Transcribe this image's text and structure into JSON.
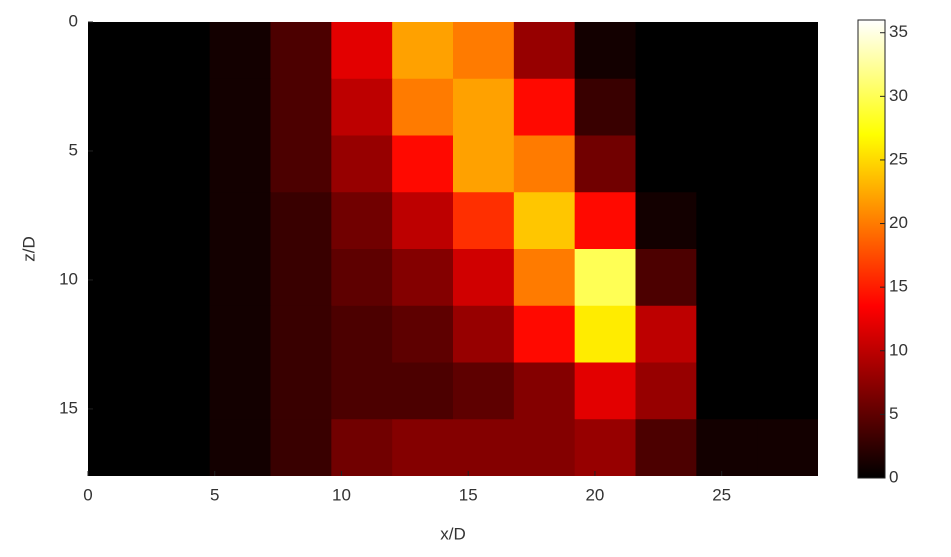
{
  "chart_data": {
    "type": "heatmap",
    "xlabel": "x/D",
    "ylabel": "z/D",
    "xbins": [
      0,
      2.4,
      4.8,
      7.2,
      9.6,
      12,
      14.4,
      16.8,
      19.2,
      21.6,
      24,
      26.4,
      28.8
    ],
    "ybins": [
      0,
      2.2,
      4.4,
      6.6,
      8.8,
      11,
      13.2,
      15.4,
      17.6
    ],
    "z": [
      [
        0,
        0,
        1,
        4,
        12,
        22,
        20,
        8,
        1,
        0,
        0,
        0
      ],
      [
        0,
        0,
        1,
        4,
        10,
        20,
        22,
        14,
        3,
        0,
        0,
        0
      ],
      [
        0,
        0,
        1,
        4,
        8,
        14,
        22,
        20,
        6,
        0,
        0,
        0
      ],
      [
        0,
        0,
        1,
        3,
        6,
        10,
        16,
        24,
        14,
        1,
        0,
        0
      ],
      [
        0,
        0,
        1,
        3,
        5,
        7,
        11,
        20,
        30,
        4,
        0,
        0
      ],
      [
        0,
        0,
        1,
        3,
        4,
        5,
        8,
        14,
        26,
        10,
        0,
        0
      ],
      [
        0,
        0,
        1,
        3,
        4,
        4,
        5,
        7,
        12,
        8,
        0,
        0
      ],
      [
        0,
        0,
        1,
        3,
        6,
        7,
        7,
        7,
        8,
        4,
        1,
        1
      ]
    ],
    "xlim": [
      0,
      28.8
    ],
    "ylim": [
      0,
      17.6
    ],
    "y_reversed": true,
    "xticks": [
      0,
      5,
      10,
      15,
      20,
      25
    ],
    "yticks": [
      0,
      5,
      10,
      15
    ],
    "colormap": "hot",
    "clim": [
      0,
      36
    ],
    "cticks": [
      0,
      5,
      10,
      15,
      20,
      25,
      30,
      35
    ]
  }
}
